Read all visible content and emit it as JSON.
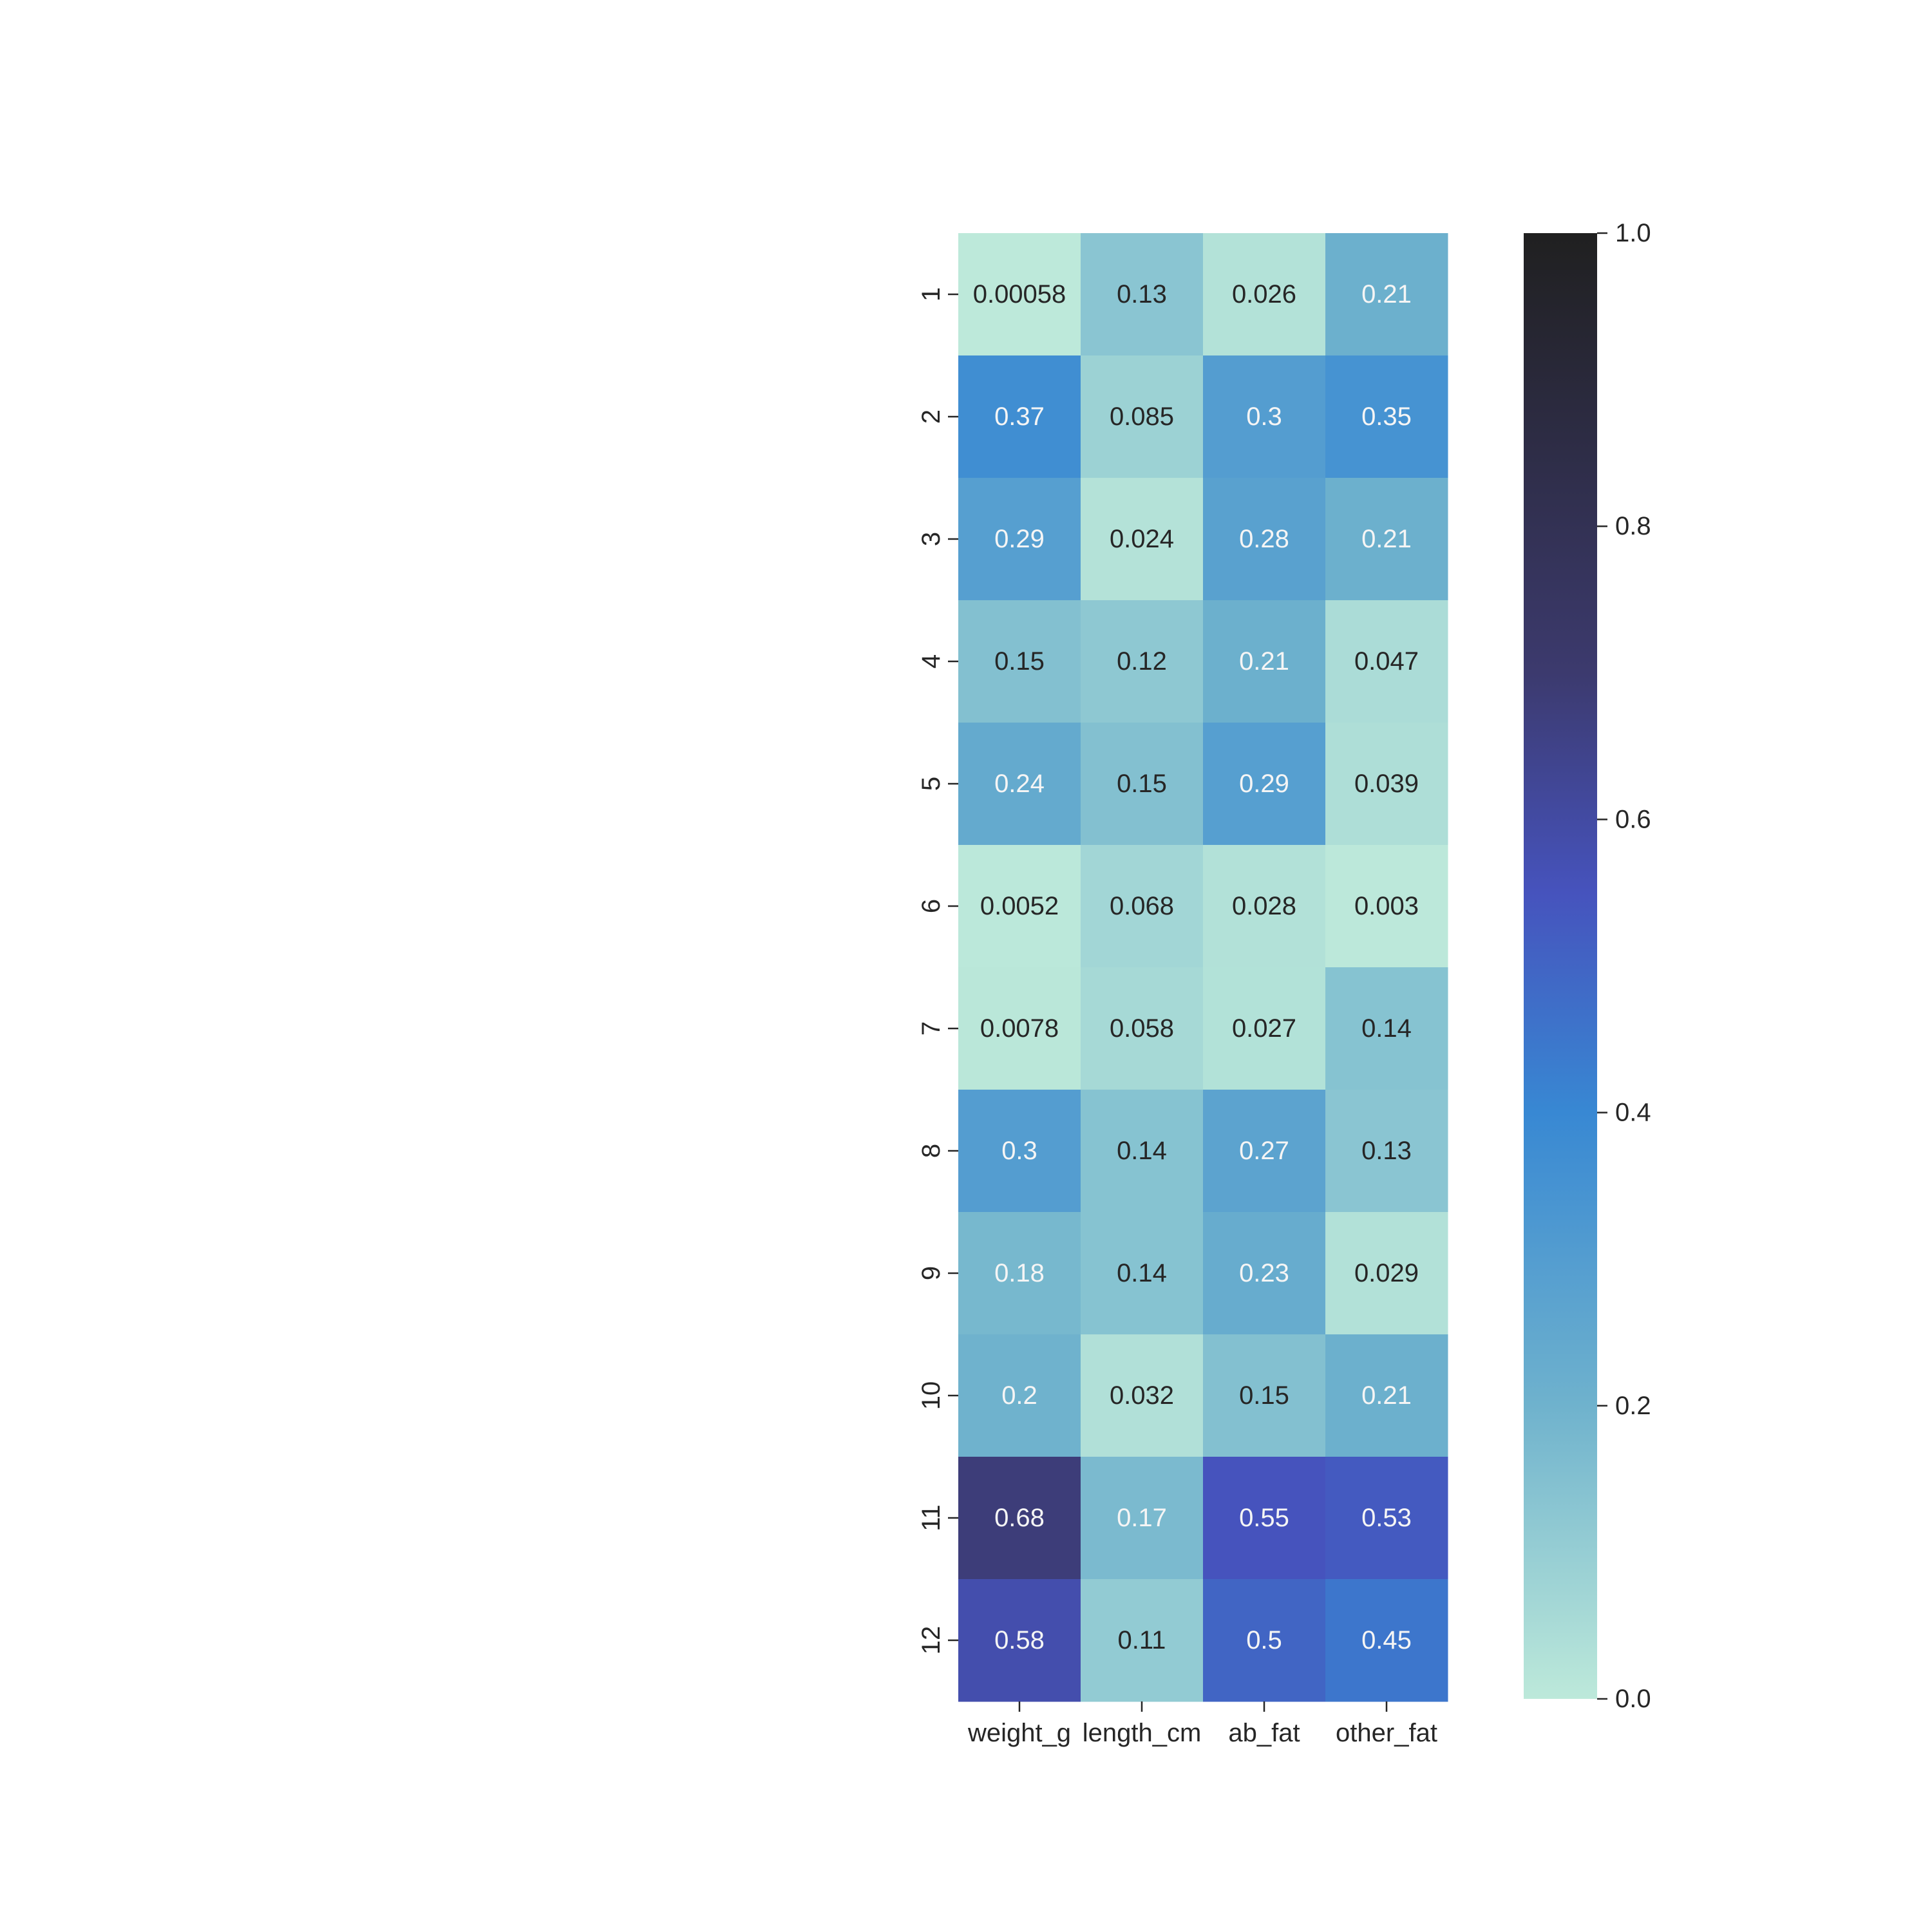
{
  "chart_data": {
    "type": "heatmap",
    "columns": [
      "weight_g",
      "length_cm",
      "ab_fat",
      "other_fat"
    ],
    "rows": [
      "1",
      "2",
      "3",
      "4",
      "5",
      "6",
      "7",
      "8",
      "9",
      "10",
      "11",
      "12"
    ],
    "values": [
      [
        0.00058,
        0.13,
        0.026,
        0.21
      ],
      [
        0.37,
        0.085,
        0.3,
        0.35
      ],
      [
        0.29,
        0.024,
        0.28,
        0.21
      ],
      [
        0.15,
        0.12,
        0.21,
        0.047
      ],
      [
        0.24,
        0.15,
        0.29,
        0.039
      ],
      [
        0.0052,
        0.068,
        0.028,
        0.003
      ],
      [
        0.0078,
        0.058,
        0.027,
        0.14
      ],
      [
        0.3,
        0.14,
        0.27,
        0.13
      ],
      [
        0.18,
        0.14,
        0.23,
        0.029
      ],
      [
        0.2,
        0.032,
        0.15,
        0.21
      ],
      [
        0.68,
        0.17,
        0.55,
        0.53
      ],
      [
        0.58,
        0.11,
        0.5,
        0.45
      ]
    ],
    "labels": [
      [
        "0.00058",
        "0.13",
        "0.026",
        "0.21"
      ],
      [
        "0.37",
        "0.085",
        "0.3",
        "0.35"
      ],
      [
        "0.29",
        "0.024",
        "0.28",
        "0.21"
      ],
      [
        "0.15",
        "0.12",
        "0.21",
        "0.047"
      ],
      [
        "0.24",
        "0.15",
        "0.29",
        "0.039"
      ],
      [
        "0.0052",
        "0.068",
        "0.028",
        "0.003"
      ],
      [
        "0.0078",
        "0.058",
        "0.027",
        "0.14"
      ],
      [
        "0.3",
        "0.14",
        "0.27",
        "0.13"
      ],
      [
        "0.18",
        "0.14",
        "0.23",
        "0.029"
      ],
      [
        "0.2",
        "0.032",
        "0.15",
        "0.21"
      ],
      [
        "0.68",
        "0.17",
        "0.55",
        "0.53"
      ],
      [
        "0.58",
        "0.11",
        "0.5",
        "0.45"
      ]
    ],
    "vmin": 0.0,
    "vmax": 1.0,
    "colorbar_ticks": [
      "0.0",
      "0.2",
      "0.4",
      "0.6",
      "0.8",
      "1.0"
    ],
    "colormap": [
      [
        0.0,
        "#bde9da"
      ],
      [
        0.2,
        "#6fb2cd"
      ],
      [
        0.4,
        "#3888d3"
      ],
      [
        0.55,
        "#4653bd"
      ],
      [
        0.7,
        "#3c3a6e"
      ],
      [
        1.0,
        "#202020"
      ]
    ],
    "annotation_text_light": "#f5f5f5",
    "annotation_text_dark": "#262626",
    "title": "",
    "xlabel": "",
    "ylabel": ""
  }
}
